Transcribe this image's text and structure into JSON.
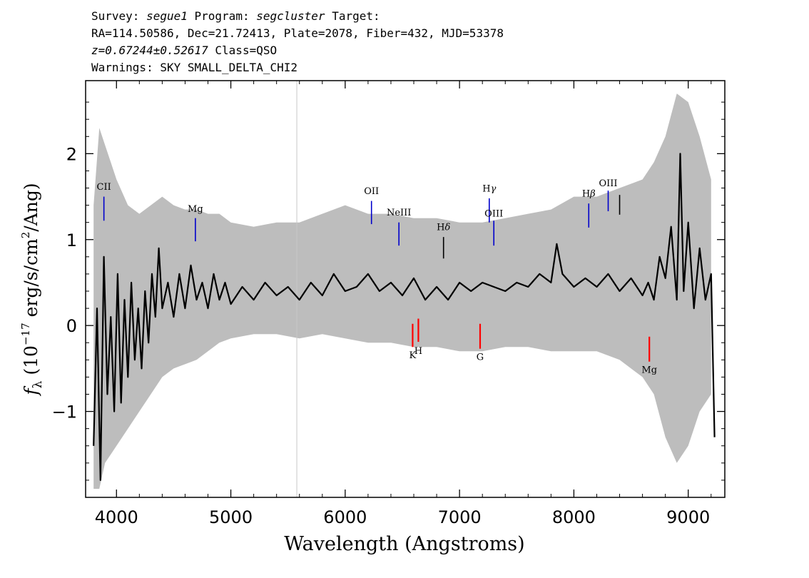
{
  "header": {
    "line1": {
      "survey_label": "Survey:",
      "survey": "segue1",
      "program_label": "Program:",
      "program": "segcluster",
      "target_label": "Target:"
    },
    "line2": "RA=114.50586, Dec=21.72413, Plate=2078, Fiber=432, MJD=53378",
    "line3": {
      "z": "z=0.67244±0.52617",
      "cls": "Class=QSO"
    },
    "line4": "Warnings: SKY SMALL_DELTA_CHI2"
  },
  "chart_data": {
    "type": "line",
    "xlabel": "Wavelength (Angstroms)",
    "ylabel": "f_λ (10^-17 erg/s/cm^2/Ang)",
    "xlim": [
      3730,
      9320
    ],
    "ylim": [
      -2.0,
      2.85
    ],
    "xticks": [
      4000,
      5000,
      6000,
      7000,
      8000,
      9000
    ],
    "yticks": [
      -1,
      0,
      1,
      2
    ],
    "series": [
      {
        "color": "#bdbdbd",
        "x": [
          3800,
          3850,
          3900,
          3950,
          4000,
          4100,
          4200,
          4300,
          4400,
          4500,
          4600,
          4700,
          4800,
          4900,
          5000,
          5200,
          5400,
          5600,
          5800,
          6000,
          6200,
          6400,
          6600,
          6800,
          7000,
          7200,
          7400,
          7600,
          7800,
          8000,
          8200,
          8400,
          8600,
          8700,
          8800,
          8900,
          9000,
          9100,
          9200
        ],
        "upper": [
          1.4,
          2.3,
          2.1,
          1.9,
          1.7,
          1.4,
          1.3,
          1.4,
          1.5,
          1.4,
          1.35,
          1.35,
          1.3,
          1.3,
          1.2,
          1.15,
          1.2,
          1.2,
          1.3,
          1.4,
          1.3,
          1.3,
          1.25,
          1.25,
          1.2,
          1.2,
          1.25,
          1.3,
          1.35,
          1.5,
          1.5,
          1.6,
          1.7,
          1.9,
          2.2,
          2.7,
          2.6,
          2.2,
          1.7
        ],
        "lower": [
          -1.9,
          -1.9,
          -1.6,
          -1.5,
          -1.4,
          -1.2,
          -1.0,
          -0.8,
          -0.6,
          -0.5,
          -0.45,
          -0.4,
          -0.3,
          -0.2,
          -0.15,
          -0.1,
          -0.1,
          -0.15,
          -0.1,
          -0.15,
          -0.2,
          -0.2,
          -0.25,
          -0.25,
          -0.3,
          -0.3,
          -0.25,
          -0.25,
          -0.3,
          -0.3,
          -0.3,
          -0.4,
          -0.6,
          -0.8,
          -1.3,
          -1.6,
          -1.4,
          -1.0,
          -0.8
        ]
      },
      {
        "color": "#000000",
        "x": [
          3800,
          3830,
          3860,
          3890,
          3920,
          3950,
          3980,
          4010,
          4040,
          4070,
          4100,
          4130,
          4160,
          4190,
          4220,
          4250,
          4280,
          4310,
          4340,
          4370,
          4400,
          4450,
          4500,
          4550,
          4600,
          4650,
          4700,
          4750,
          4800,
          4850,
          4900,
          4950,
          5000,
          5100,
          5200,
          5300,
          5400,
          5500,
          5600,
          5700,
          5800,
          5900,
          6000,
          6100,
          6200,
          6300,
          6400,
          6500,
          6600,
          6700,
          6800,
          6900,
          7000,
          7100,
          7200,
          7300,
          7400,
          7500,
          7600,
          7700,
          7800,
          7850,
          7900,
          8000,
          8100,
          8200,
          8300,
          8400,
          8500,
          8600,
          8650,
          8700,
          8750,
          8800,
          8850,
          8900,
          8930,
          8960,
          9000,
          9050,
          9100,
          9150,
          9200,
          9230
        ],
        "y": [
          -1.4,
          0.2,
          -1.8,
          0.8,
          -0.8,
          0.1,
          -1.0,
          0.6,
          -0.9,
          0.3,
          -0.6,
          0.5,
          -0.4,
          0.2,
          -0.5,
          0.4,
          -0.2,
          0.6,
          0.1,
          0.9,
          0.2,
          0.5,
          0.1,
          0.6,
          0.2,
          0.7,
          0.3,
          0.5,
          0.2,
          0.6,
          0.3,
          0.5,
          0.25,
          0.45,
          0.3,
          0.5,
          0.35,
          0.45,
          0.3,
          0.5,
          0.35,
          0.6,
          0.4,
          0.45,
          0.6,
          0.4,
          0.5,
          0.35,
          0.55,
          0.3,
          0.45,
          0.3,
          0.5,
          0.4,
          0.5,
          0.45,
          0.4,
          0.5,
          0.45,
          0.6,
          0.5,
          0.95,
          0.6,
          0.45,
          0.55,
          0.45,
          0.6,
          0.4,
          0.55,
          0.35,
          0.5,
          0.3,
          0.8,
          0.55,
          1.15,
          0.3,
          2.0,
          0.4,
          1.2,
          0.2,
          0.9,
          0.3,
          0.6,
          -1.3
        ]
      }
    ],
    "extra_vline": {
      "x": 5577,
      "color": "#c8c8c8"
    },
    "annotations": [
      {
        "label": "CII",
        "x": 3890,
        "color": "#0000cc",
        "y_top": 1.5,
        "y_bot": 1.22,
        "text_y": 1.58,
        "greek": ""
      },
      {
        "label": "Mg",
        "x": 4690,
        "color": "#0000cc",
        "y_top": 1.25,
        "y_bot": 0.98,
        "text_y": 1.32,
        "greek": ""
      },
      {
        "label": "OII",
        "x": 6230,
        "color": "#0000cc",
        "y_top": 1.45,
        "y_bot": 1.18,
        "text_y": 1.53,
        "greek": ""
      },
      {
        "label": "NeIII",
        "x": 6470,
        "color": "#0000cc",
        "y_top": 1.2,
        "y_bot": 0.93,
        "text_y": 1.28,
        "greek": ""
      },
      {
        "label": "H",
        "x": 6860,
        "color": "#000000",
        "y_top": 1.03,
        "y_bot": 0.78,
        "text_y": 1.11,
        "greek": "δ"
      },
      {
        "label": "H",
        "x": 7260,
        "color": "#0000cc",
        "y_top": 1.48,
        "y_bot": 1.2,
        "text_y": 1.56,
        "greek": "γ"
      },
      {
        "label": "OIII",
        "x": 7300,
        "color": "#0000cc",
        "y_top": 1.22,
        "y_bot": 0.93,
        "text_y": 1.27,
        "greek": ""
      },
      {
        "label": "H",
        "x": 8130,
        "color": "#0000cc",
        "y_top": 1.42,
        "y_bot": 1.14,
        "text_y": 1.5,
        "greek": "β"
      },
      {
        "label": "OIII",
        "x": 8300,
        "color": "#0000cc",
        "y_top": 1.57,
        "y_bot": 1.33,
        "text_y": 1.62,
        "greek": ""
      },
      {
        "label": "",
        "x": 8400,
        "color": "#000000",
        "y_top": 1.52,
        "y_bot": 1.29,
        "text_y": 1.6,
        "greek": ""
      },
      {
        "label": "K",
        "x": 6590,
        "color": "#ff0000",
        "y_top": 0.02,
        "y_bot": -0.25,
        "text_y": -0.38,
        "greek": ""
      },
      {
        "label": "H",
        "x": 6640,
        "color": "#ff0000",
        "y_top": 0.08,
        "y_bot": -0.19,
        "text_y": -0.33,
        "greek": ""
      },
      {
        "label": "G",
        "x": 7180,
        "color": "#ff0000",
        "y_top": 0.02,
        "y_bot": -0.27,
        "text_y": -0.4,
        "greek": ""
      },
      {
        "label": "Mg",
        "x": 8660,
        "color": "#ff0000",
        "y_top": -0.13,
        "y_bot": -0.42,
        "text_y": -0.55,
        "greek": ""
      }
    ]
  }
}
